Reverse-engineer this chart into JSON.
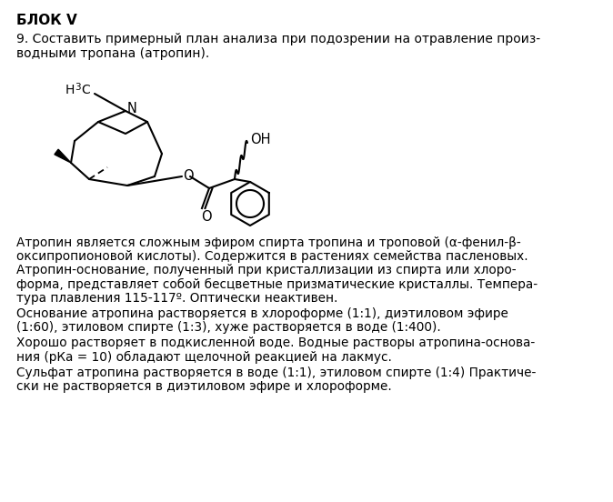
{
  "title": "БЛОК V",
  "question_line1": "9. Составить примерный план анализа при подозрении на отравление произ-",
  "question_line2": "водными тропана (атропин).",
  "p1_lines": [
    "Атропин является сложным эфиром спирта тропина и троповой (α-фенил-β-",
    "оксипропионовой кислоты). Содержится в растениях семейства пасленовых.",
    "Атропин-основание, полученный при кристаллизации из спирта или хлоро-",
    "форма, представляет собой бесцветные призматические кристаллы. Темпера-",
    "тура плавления 115-117º. Оптически неактивен."
  ],
  "p2_lines": [
    "Основание атропина растворяется в хлороформе (1:1), диэтиловом эфире",
    "(1:60), этиловом спирте (1:3), хуже растворяется в воде (1:400)."
  ],
  "p3_lines": [
    "Хорошо растворяет в подкисленной воде. Водные растворы атропина-основа-",
    "ния (рКа = 10) обладают щелочной реакцией на лакмус."
  ],
  "p4_lines": [
    "Сульфат атропина растворяется в воде (1:1), этиловом спирте (1:4) Практиче-",
    "ски не растворяется в диэтиловом эфире и хлороформе."
  ],
  "bg_color": "#ffffff",
  "text_color": "#000000"
}
